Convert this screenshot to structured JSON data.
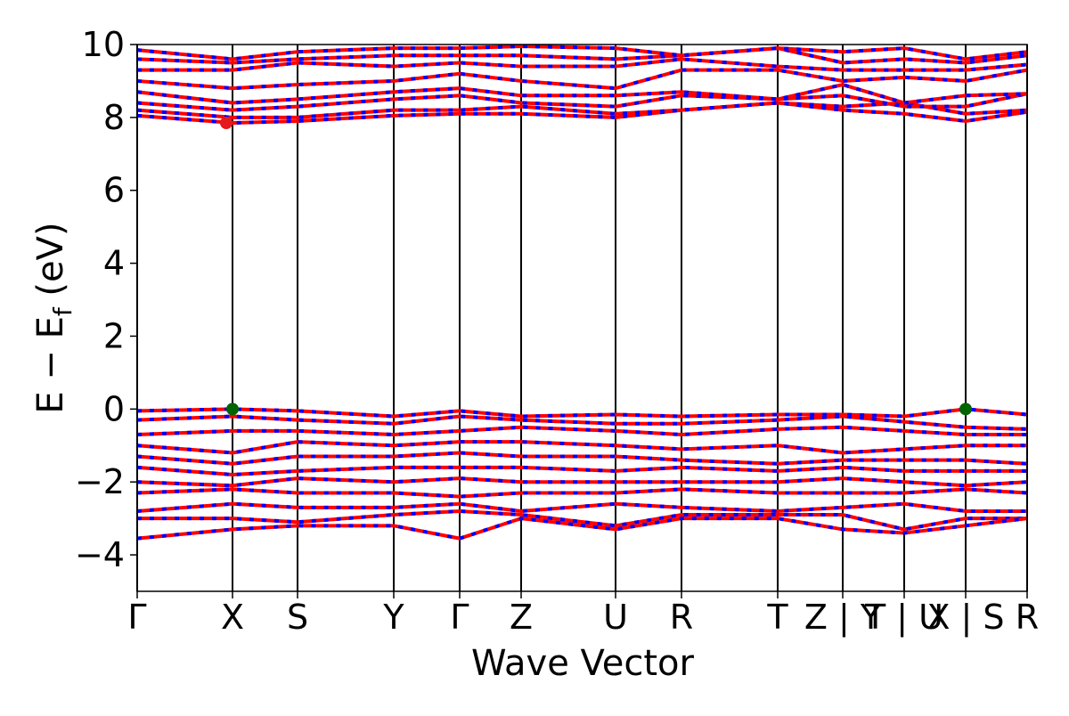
{
  "chart_data": {
    "type": "line",
    "xlabel": "Wave Vector",
    "ylabel": {
      "main": "E − E",
      "sub": "f",
      "unit": " (eV)"
    },
    "xlim": [
      0,
      9.99
    ],
    "ylim": [
      -5,
      10
    ],
    "yticks": [
      {
        "value": -4,
        "label": "−4"
      },
      {
        "value": -2,
        "label": "−2"
      },
      0,
      2,
      4,
      6,
      8,
      10
    ],
    "xticks": [
      {
        "value": 0,
        "label": "Γ"
      },
      {
        "value": 1.07,
        "label": "X"
      },
      {
        "value": 1.8,
        "label": "S"
      },
      {
        "value": 2.88,
        "label": "Y"
      },
      {
        "value": 3.62,
        "label": "Γ"
      },
      {
        "value": 4.31,
        "label": "Z"
      },
      {
        "value": 5.37,
        "label": "U"
      },
      {
        "value": 6.11,
        "label": "R"
      },
      {
        "value": 7.19,
        "label": "T"
      },
      {
        "value": 7.92,
        "label": "Z | Y"
      },
      {
        "value": 8.61,
        "label": "T | U"
      },
      {
        "value": 9.3,
        "label": "X | S"
      },
      {
        "value": 9.99,
        "label": "R"
      }
    ],
    "vlines": true,
    "color": "#ff0000",
    "dash_color": "#0000ff",
    "x": [
      0,
      1.07,
      1.8,
      2.88,
      3.62,
      4.31,
      5.37,
      6.11,
      7.19,
      7.92,
      8.61,
      9.3,
      9.99
    ],
    "series": [
      {
        "values": [
          8.05,
          7.85,
          7.9,
          8.05,
          8.1,
          8.1,
          8.0,
          8.2,
          8.4,
          8.2,
          8.1,
          7.9,
          8.15
        ]
      },
      {
        "values": [
          8.2,
          8.0,
          8.0,
          8.2,
          8.2,
          8.3,
          8.1,
          8.2,
          8.4,
          8.3,
          8.4,
          8.1,
          8.2
        ]
      },
      {
        "values": [
          8.4,
          8.2,
          8.3,
          8.5,
          8.6,
          8.4,
          8.3,
          8.6,
          8.5,
          8.6,
          8.3,
          8.3,
          8.65
        ]
      },
      {
        "values": [
          8.7,
          8.4,
          8.5,
          8.7,
          8.8,
          8.6,
          8.6,
          8.7,
          8.5,
          8.9,
          8.4,
          8.6,
          8.65
        ]
      },
      {
        "values": [
          9.0,
          8.8,
          8.9,
          9.0,
          9.2,
          9.0,
          8.8,
          9.3,
          9.3,
          9.0,
          9.1,
          9.0,
          9.3
        ]
      },
      {
        "values": [
          9.3,
          9.3,
          9.5,
          9.4,
          9.5,
          9.4,
          9.4,
          9.6,
          9.4,
          9.3,
          9.3,
          9.3,
          9.45
        ]
      },
      {
        "values": [
          9.6,
          9.5,
          9.6,
          9.7,
          9.7,
          9.7,
          9.6,
          9.7,
          9.9,
          9.5,
          9.6,
          9.5,
          9.7
        ]
      },
      {
        "values": [
          9.85,
          9.6,
          9.8,
          9.9,
          9.9,
          9.95,
          9.9,
          9.7,
          9.9,
          9.8,
          9.9,
          9.6,
          9.8
        ]
      },
      {
        "values": [
          -0.05,
          0,
          -0.05,
          -0.2,
          -0.05,
          -0.2,
          -0.15,
          -0.2,
          -0.15,
          -0.15,
          -0.2,
          0,
          -0.15
        ]
      },
      {
        "values": [
          -0.3,
          -0.2,
          -0.3,
          -0.4,
          -0.2,
          -0.3,
          -0.4,
          -0.4,
          -0.3,
          -0.2,
          -0.35,
          -0.5,
          -0.55
        ]
      },
      {
        "values": [
          -0.7,
          -0.6,
          -0.6,
          -0.7,
          -0.6,
          -0.5,
          -0.6,
          -0.7,
          -0.55,
          -0.5,
          -0.6,
          -0.7,
          -0.7
        ]
      },
      {
        "values": [
          -1.0,
          -1.2,
          -0.9,
          -1.0,
          -0.9,
          -0.9,
          -1.0,
          -1.1,
          -1.0,
          -1.2,
          -1.1,
          -1.0,
          -1.0
        ]
      },
      {
        "values": [
          -1.3,
          -1.5,
          -1.3,
          -1.3,
          -1.2,
          -1.3,
          -1.3,
          -1.4,
          -1.5,
          -1.4,
          -1.4,
          -1.4,
          -1.5
        ]
      },
      {
        "values": [
          -1.6,
          -1.8,
          -1.7,
          -1.6,
          -1.6,
          -1.6,
          -1.7,
          -1.6,
          -1.7,
          -1.6,
          -1.7,
          -1.7,
          -1.7
        ]
      },
      {
        "values": [
          -2.0,
          -2.1,
          -1.9,
          -2.0,
          -1.9,
          -2.0,
          -2.0,
          -2.0,
          -2.0,
          -1.9,
          -2.0,
          -2.1,
          -2.0
        ]
      },
      {
        "values": [
          -2.3,
          -2.2,
          -2.3,
          -2.3,
          -2.4,
          -2.3,
          -2.3,
          -2.2,
          -2.3,
          -2.3,
          -2.3,
          -2.2,
          -2.3
        ]
      },
      {
        "values": [
          -2.8,
          -2.6,
          -2.7,
          -2.7,
          -2.6,
          -2.8,
          -2.6,
          -2.7,
          -2.8,
          -2.7,
          -2.6,
          -2.8,
          -2.8
        ]
      },
      {
        "values": [
          -3.0,
          -3.0,
          -3.1,
          -2.9,
          -2.8,
          -2.9,
          -3.2,
          -2.9,
          -2.9,
          -2.9,
          -3.3,
          -3.0,
          -3.0
        ]
      },
      {
        "values": [
          -3.55,
          -3.3,
          -3.2,
          -3.2,
          -3.55,
          -3.0,
          -3.3,
          -3.0,
          -3.0,
          -3.3,
          -3.4,
          -3.2,
          -3.0
        ]
      }
    ],
    "markers": {
      "x": [
        1.0,
        1.07,
        9.3
      ],
      "y": [
        7.85,
        0,
        0
      ],
      "colors": [
        "#e41a1c",
        "#006400",
        "#006400"
      ]
    }
  }
}
